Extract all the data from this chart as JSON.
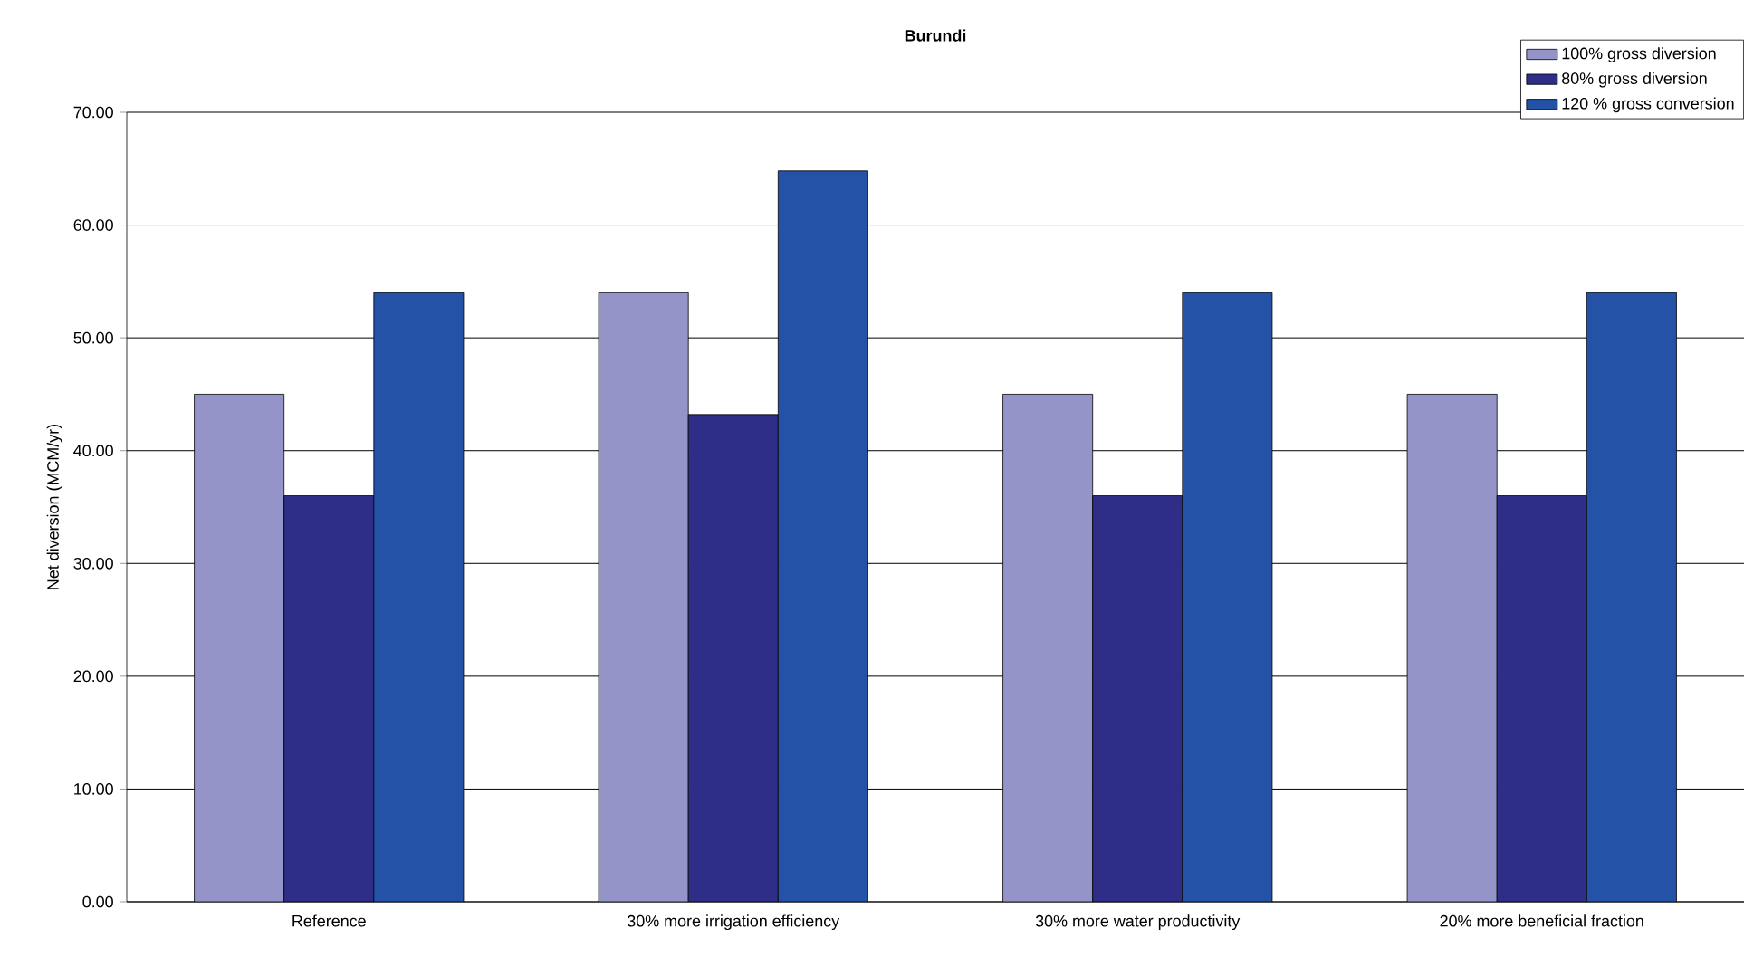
{
  "chart_data": {
    "type": "bar",
    "title": "Burundi",
    "ylabel": "Net diversion (MCM/yr)",
    "categories": [
      "Reference",
      "30% more irrigation efficiency",
      "30% more water productivity",
      "20% more beneficial fraction"
    ],
    "series": [
      {
        "name": "100% gross diversion",
        "color": "#9494c8",
        "values": [
          45,
          54,
          45,
          45
        ]
      },
      {
        "name": "80% gross diversion",
        "color": "#2e2e88",
        "values": [
          36,
          43.2,
          36,
          36
        ]
      },
      {
        "name": "120 % gross conversion",
        "color": "#2352a6",
        "values": [
          54,
          64.8,
          54,
          54
        ]
      }
    ],
    "ylim": [
      0,
      70
    ],
    "yticks": [
      {
        "value": 0,
        "label": "0.00"
      },
      {
        "value": 10,
        "label": "10.00"
      },
      {
        "value": 20,
        "label": "20.00"
      },
      {
        "value": 30,
        "label": "30.00"
      },
      {
        "value": 40,
        "label": "40.00"
      },
      {
        "value": 50,
        "label": "50.00"
      },
      {
        "value": 60,
        "label": "60.00"
      },
      {
        "value": 70,
        "label": "70.00"
      }
    ],
    "grid": "y",
    "legend": "top right"
  }
}
